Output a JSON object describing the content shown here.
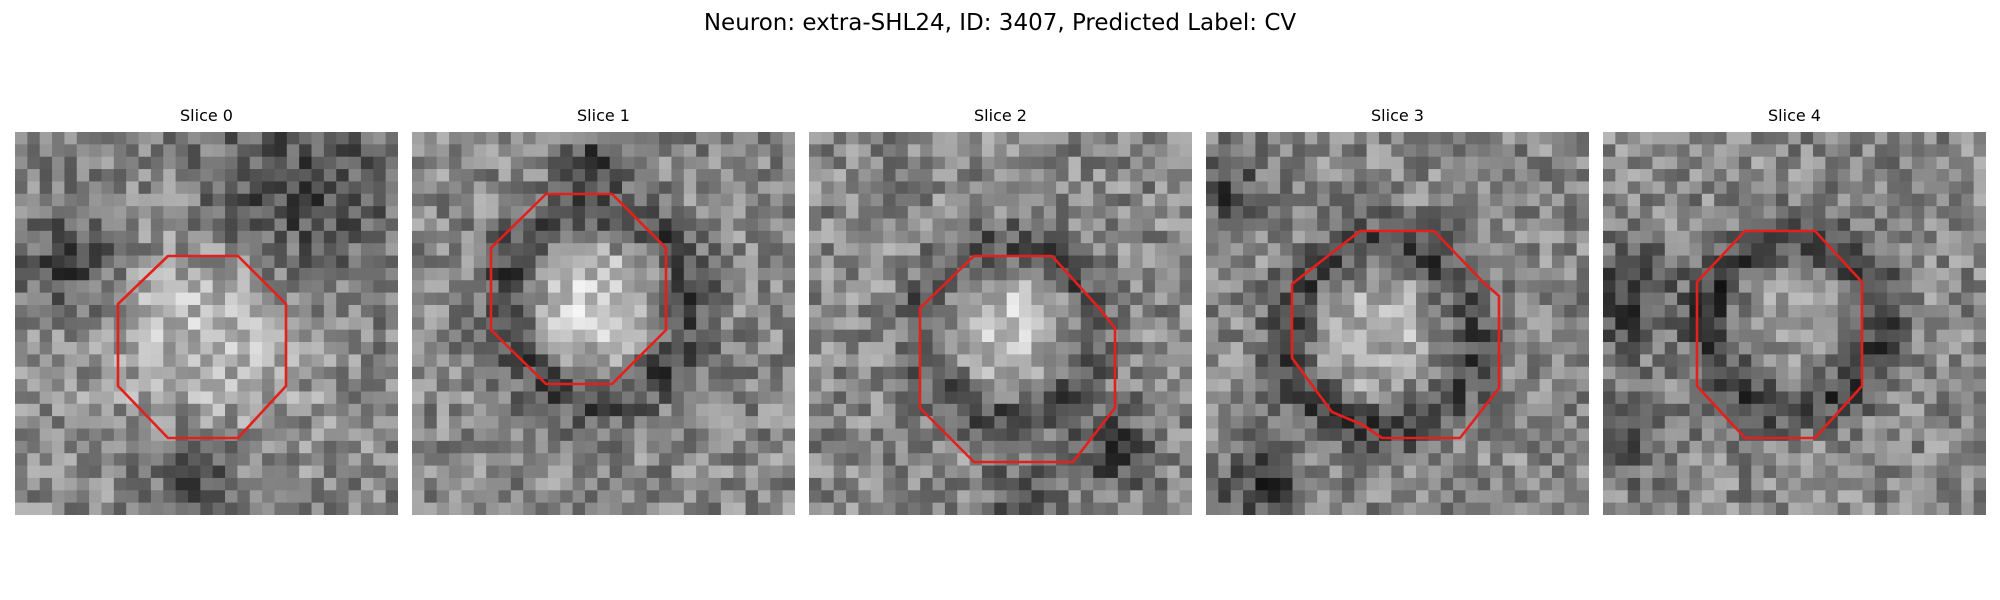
{
  "figure": {
    "title": "Neuron: extra-SHL24, ID: 3407, Predicted Label: CV"
  },
  "panels": [
    {
      "title": "Slice 0",
      "contour_color": "#e3201c"
    },
    {
      "title": "Slice 1",
      "contour_color": "#e3201c"
    },
    {
      "title": "Slice 2",
      "contour_color": "#e3201c"
    },
    {
      "title": "Slice 3",
      "contour_color": "#e3201c"
    },
    {
      "title": "Slice 4",
      "contour_color": "#e3201c"
    }
  ]
}
